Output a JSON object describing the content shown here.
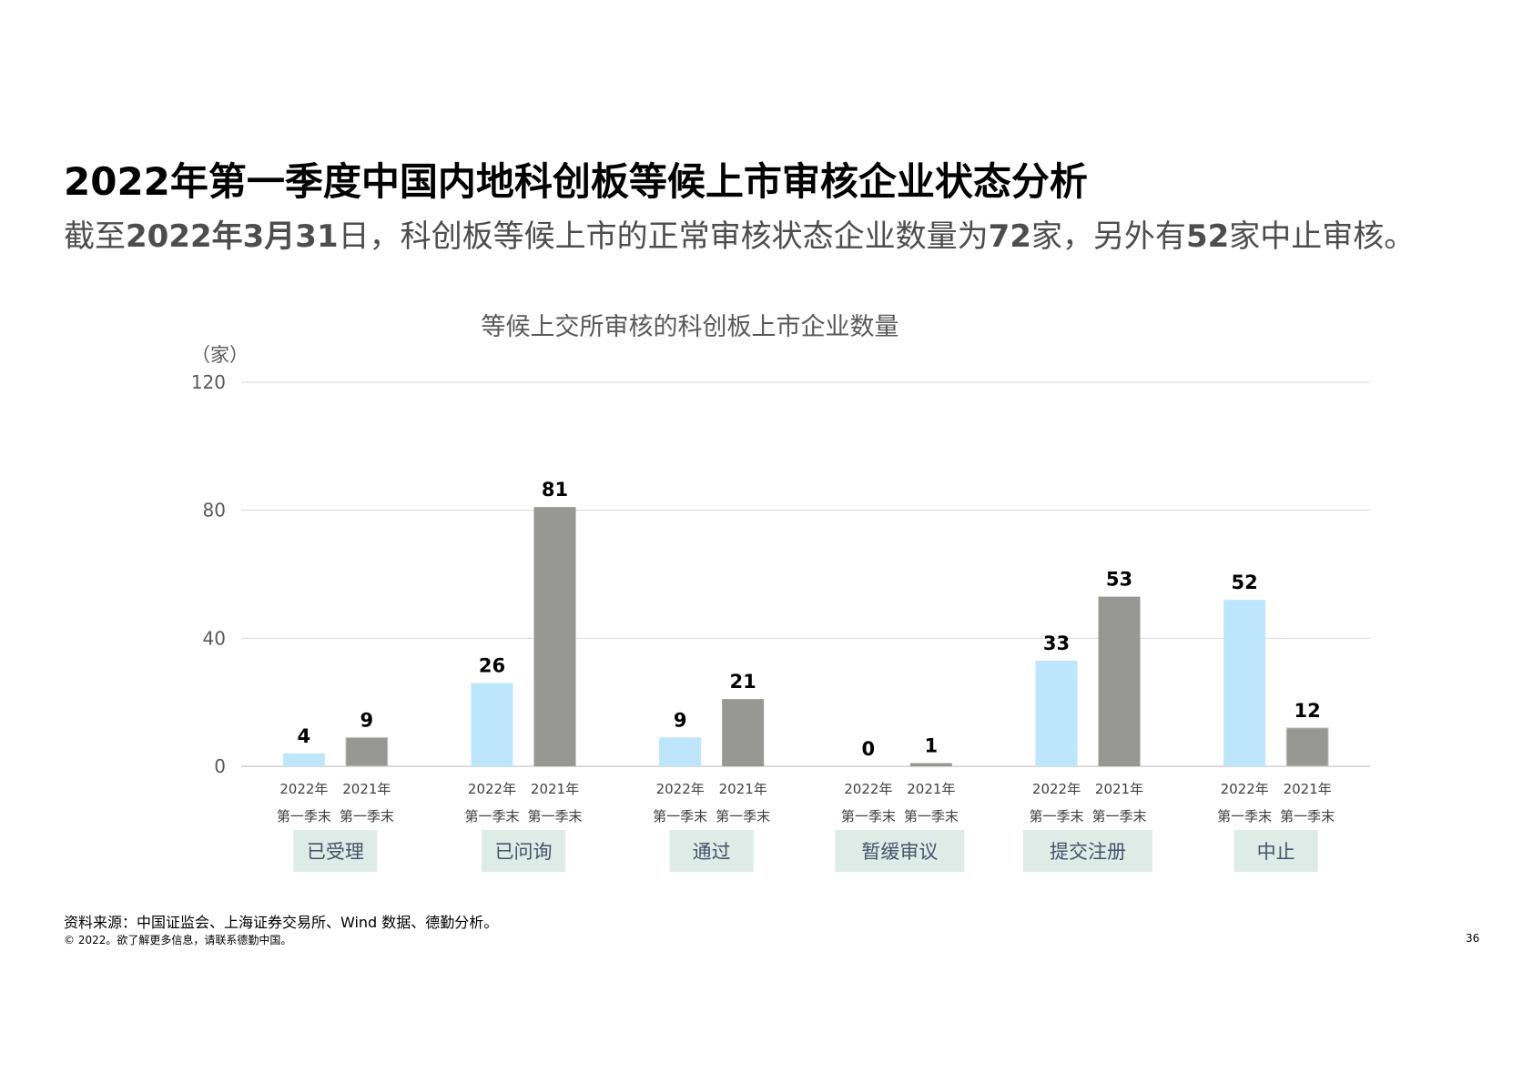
{
  "header": {
    "title": "2022年第一季度中国内地科创板等候上市审核企业状态分析",
    "subtitle_parts": {
      "p1": "截至",
      "d1": "2022年3月31",
      "p2": "日，科创板等候上市的正常审核状态企业数量为",
      "n1": "72",
      "p3": "家，另外有",
      "n2": "52",
      "p4": "家中止审核。"
    }
  },
  "chart_data": {
    "type": "bar",
    "title": "等候上交所审核的科创板上市企业数量",
    "ylabel": "（家）",
    "ylim": [
      0,
      120
    ],
    "yticks": [
      0,
      40,
      80,
      120
    ],
    "grid": true,
    "categories": [
      "已受理",
      "已问询",
      "通过",
      "暂缓审议",
      "提交注册",
      "中止"
    ],
    "series": [
      {
        "name": "2022年第一季末",
        "label_line1": "2022年",
        "label_line2": "第一季末",
        "color": "#bde5fb",
        "values": [
          4,
          26,
          9,
          0,
          33,
          52
        ]
      },
      {
        "name": "2021年第一季末",
        "label_line1": "2021年",
        "label_line2": "第一季末",
        "color": "#979793",
        "values": [
          9,
          81,
          21,
          1,
          53,
          12
        ]
      }
    ],
    "category_box_color": "#ddece6",
    "category_text_color": "#44546a"
  },
  "footer": {
    "source": "资料来源：中国证监会、上海证券交易所、Wind 数据、德勤分析。",
    "copyright": "© 2022。欲了解更多信息，请联系德勤中国。",
    "page_number": "36"
  }
}
